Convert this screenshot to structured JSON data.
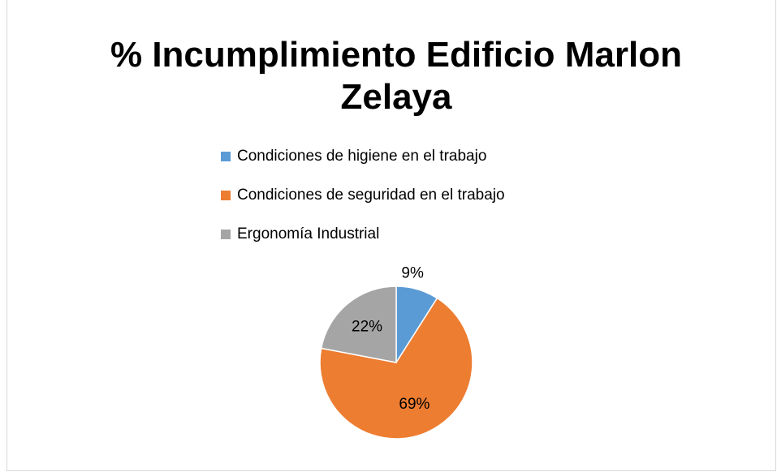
{
  "chart_data": {
    "type": "pie",
    "title": "% Incumplimiento Edificio Marlon Zelaya",
    "categories": [
      "Condiciones de higiene en el trabajo",
      "Condiciones de seguridad en el trabajo",
      "Ergonomía Industrial"
    ],
    "values": [
      9,
      69,
      22
    ],
    "value_labels": [
      "9%",
      "69%",
      "22%"
    ],
    "colors": [
      "#5b9bd5",
      "#ed7d31",
      "#a5a5a5"
    ],
    "legend": "top"
  }
}
